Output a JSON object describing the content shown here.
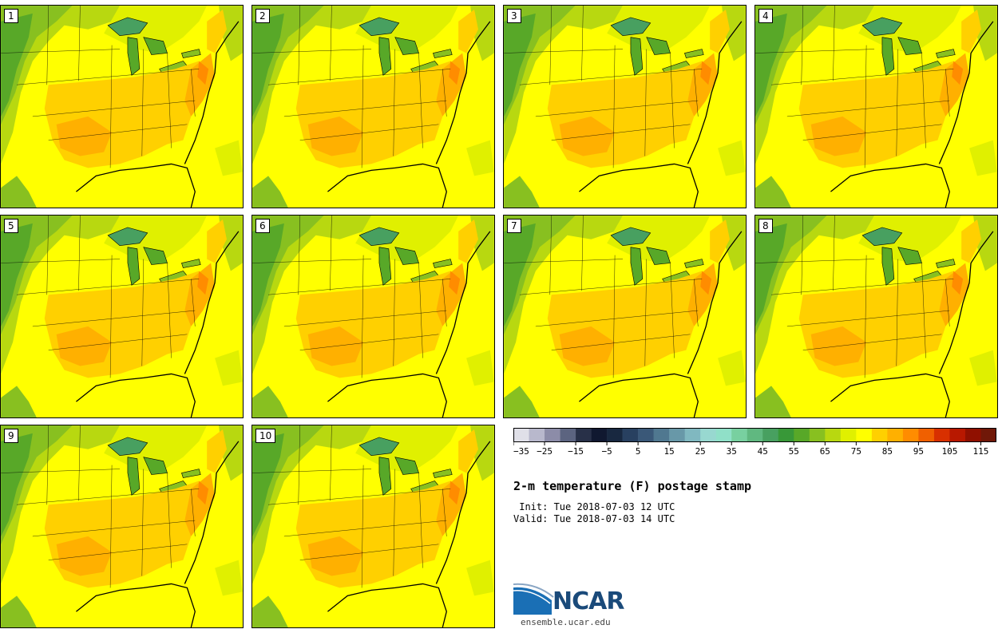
{
  "panels": [
    {
      "label": "1"
    },
    {
      "label": "2"
    },
    {
      "label": "3"
    },
    {
      "label": "4"
    },
    {
      "label": "5"
    },
    {
      "label": "6"
    },
    {
      "label": "7"
    },
    {
      "label": "8"
    },
    {
      "label": "9"
    },
    {
      "label": "10"
    }
  ],
  "colorbar": {
    "colors": [
      "#e0e0e8",
      "#b8b8cc",
      "#8c8ca8",
      "#5c6480",
      "#283048",
      "#101830",
      "#182840",
      "#284060",
      "#3a5878",
      "#507890",
      "#6898a8",
      "#80b8c0",
      "#98d8d0",
      "#90e0c8",
      "#78d0a0",
      "#60b880",
      "#48a060",
      "#389838",
      "#58a828",
      "#88c020",
      "#b8d810",
      "#e0f000",
      "#ffff00",
      "#ffd000",
      "#ffb000",
      "#ff8c00",
      "#f06000",
      "#d83000",
      "#b81800",
      "#901000",
      "#701808"
    ],
    "tick_labels": [
      "−35",
      "−25",
      "−15",
      "−5",
      "5",
      "15",
      "25",
      "35",
      "45",
      "55",
      "65",
      "75",
      "85",
      "95",
      "105",
      "115"
    ]
  },
  "title": "2-m temperature (F) postage stamp",
  "init_line": " Init: Tue 2018-07-03 12 UTC",
  "valid_line": "Valid: Tue 2018-07-03 14 UTC",
  "logo_text": "NCAR",
  "site": "ensemble.ucar.edu"
}
